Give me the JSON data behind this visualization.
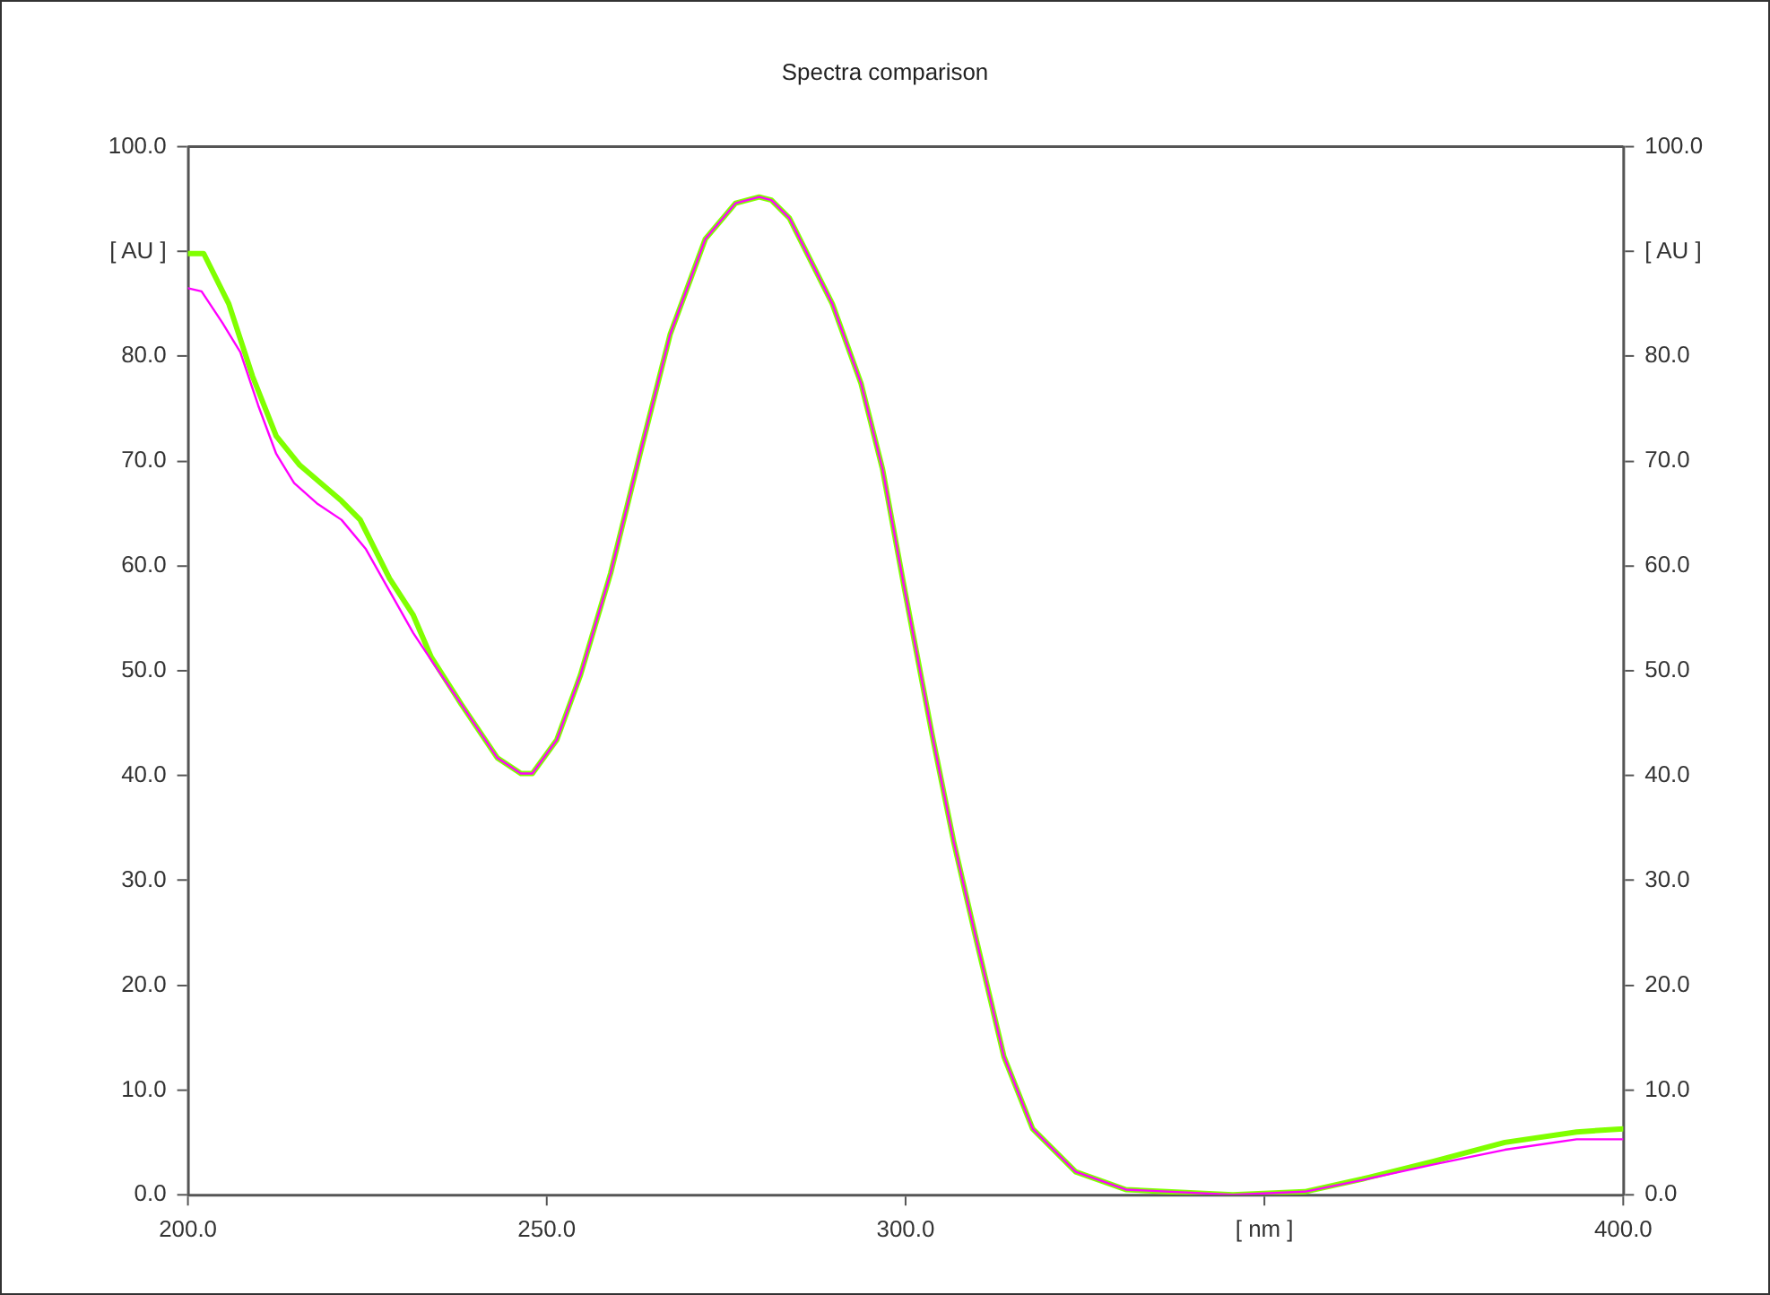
{
  "chart_data": {
    "type": "line",
    "title": "Spectra comparison",
    "xlim": [
      200,
      400
    ],
    "xticks": [
      {
        "value": 200,
        "label": "200.0"
      },
      {
        "value": 250,
        "label": "250.0"
      },
      {
        "value": 300,
        "label": "300.0"
      },
      {
        "value": 350,
        "label": "[ nm ]"
      },
      {
        "value": 400,
        "label": "400.0"
      }
    ],
    "ylim": [
      0,
      100
    ],
    "yticks": [
      {
        "value": 0,
        "label": "0.0"
      },
      {
        "value": 10,
        "label": "10.0"
      },
      {
        "value": 20,
        "label": "20.0"
      },
      {
        "value": 30,
        "label": "30.0"
      },
      {
        "value": 40,
        "label": "40.0"
      },
      {
        "value": 50,
        "label": "50.0"
      },
      {
        "value": 60,
        "label": "60.0"
      },
      {
        "value": 70,
        "label": "70.0"
      },
      {
        "value": 80,
        "label": "80.0"
      },
      {
        "value": 90,
        "label": "[ AU ]"
      },
      {
        "value": 100,
        "label": "100.0"
      }
    ],
    "y2lim": [
      0,
      100
    ],
    "y2ticks": [
      {
        "value": 0,
        "label": "0.0"
      },
      {
        "value": 10,
        "label": "10.0"
      },
      {
        "value": 20,
        "label": "20.0"
      },
      {
        "value": 30,
        "label": "30.0"
      },
      {
        "value": 40,
        "label": "40.0"
      },
      {
        "value": 50,
        "label": "50.0"
      },
      {
        "value": 60,
        "label": "60.0"
      },
      {
        "value": 70,
        "label": "70.0"
      },
      {
        "value": 80,
        "label": "80.0"
      },
      {
        "value": 90,
        "label": "[ AU ]"
      },
      {
        "value": 100,
        "label": "100.0"
      }
    ],
    "grid": false,
    "legend": false,
    "marker": "none",
    "line_style": "solid",
    "series": [
      {
        "color": "#ff00ff",
        "x": [
          200,
          201.9,
          204.8,
          207.3,
          209.8,
          212.3,
          214.8,
          218.1,
          221.4,
          224.8,
          228.1,
          231.4,
          234.7,
          238.1,
          243.1,
          246.4,
          248,
          251.4,
          254.7,
          258.9,
          263,
          267.2,
          272.1,
          276.3,
          279.6,
          281.3,
          283.8,
          289.8,
          293.8,
          296.8,
          299.8,
          303.7,
          306.7,
          309.7,
          313.7,
          317.7,
          323.7,
          330.7,
          345.6,
          355.6,
          363.6,
          373.6,
          383.5,
          393.5,
          400
        ],
        "values": [
          86.5,
          86.2,
          83.2,
          80.4,
          75.3,
          70.7,
          67.9,
          65.9,
          64.4,
          61.6,
          57.6,
          53.6,
          50.2,
          46.8,
          41.7,
          40.2,
          40.2,
          43.4,
          49.6,
          59.3,
          70.7,
          82.1,
          91.2,
          94.6,
          95.2,
          94.9,
          93.2,
          85,
          77.4,
          69.2,
          58,
          43.9,
          33.7,
          24.8,
          13.2,
          6.3,
          2.2,
          0.5,
          0,
          0.3,
          1.4,
          2.9,
          4.3,
          5.3,
          5.3
        ]
      },
      {
        "color": "#80ff00",
        "x": [
          200,
          202.2,
          205.7,
          209,
          212.3,
          215.6,
          221.4,
          224,
          228.1,
          231.4,
          233.9,
          238.1,
          243.1,
          246.4,
          248,
          251.4,
          254.7,
          258.9,
          263,
          267.2,
          272.1,
          276.3,
          279.6,
          281.3,
          283.8,
          289.8,
          293.8,
          296.8,
          299.8,
          303.7,
          306.7,
          309.7,
          313.7,
          317.7,
          323.7,
          330.7,
          345.6,
          355.6,
          363.6,
          373.6,
          383.5,
          393.5,
          400
        ],
        "values": [
          89.8,
          89.8,
          85,
          78.1,
          72.4,
          69.6,
          66.2,
          64.4,
          58.8,
          55.3,
          51.3,
          46.8,
          41.7,
          40.2,
          40.2,
          43.4,
          49.6,
          59.3,
          70.7,
          82.1,
          91.2,
          94.6,
          95.2,
          94.9,
          93.2,
          85,
          77.4,
          69.2,
          58,
          43.9,
          33.7,
          24.8,
          13.2,
          6.3,
          2.2,
          0.5,
          0,
          0.3,
          1.5,
          3.2,
          5,
          6,
          6.3
        ]
      }
    ]
  }
}
